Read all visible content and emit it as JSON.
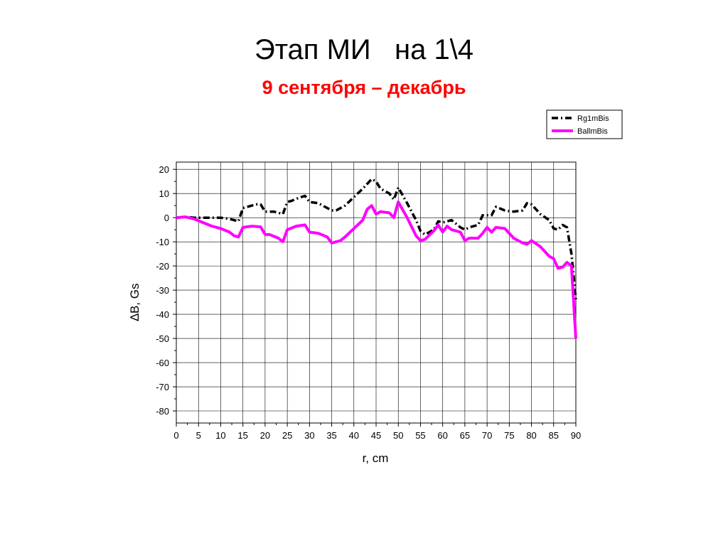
{
  "slide": {
    "title": "Этап МИ   на 1\\4",
    "subtitle": "9 сентября – декабрь"
  },
  "chart_data": {
    "type": "line",
    "xlabel": "r, cm",
    "ylabel": "∆B, Gs",
    "xlim": [
      0,
      90
    ],
    "ylim": [
      -85,
      23
    ],
    "x_ticks": [
      0,
      5,
      10,
      15,
      20,
      25,
      30,
      35,
      40,
      45,
      50,
      55,
      60,
      65,
      70,
      75,
      80,
      85,
      90
    ],
    "y_ticks": [
      20,
      10,
      0,
      -10,
      -20,
      -30,
      -40,
      -50,
      -60,
      -70,
      -80
    ],
    "grid": true,
    "legend_position": "top-right",
    "series": [
      {
        "name": "Rg1mBis",
        "color": "#000000",
        "style": "dash-dot",
        "x": [
          0,
          2,
          4,
          6,
          8,
          10,
          12,
          14,
          15,
          16,
          18,
          19,
          20,
          22,
          24,
          25,
          26,
          28,
          29,
          30,
          32,
          34,
          35,
          36,
          38,
          40,
          42,
          44,
          45,
          46,
          48,
          49,
          50,
          52,
          54,
          55,
          56,
          58,
          59,
          60,
          61,
          62,
          64,
          65,
          66,
          68,
          69,
          70,
          71,
          72,
          74,
          76,
          78,
          79,
          80,
          82,
          84,
          85,
          86,
          87,
          88,
          89,
          90
        ],
        "values": [
          0,
          0.3,
          0,
          0,
          0,
          0,
          -0.5,
          -1.5,
          4,
          4.5,
          5.5,
          5.5,
          2.5,
          2.5,
          1.5,
          6.5,
          7,
          8.5,
          9,
          6.5,
          6,
          4,
          3,
          3,
          5,
          8.5,
          12,
          16,
          15,
          12,
          10,
          7.5,
          12.5,
          6,
          -1,
          -5.5,
          -7,
          -5,
          -1.5,
          -2,
          -1.5,
          -1,
          -4,
          -5,
          -4,
          -3,
          1,
          1,
          1,
          4.5,
          3,
          2.5,
          3,
          6,
          5.5,
          1.5,
          -1,
          -4.5,
          -5,
          -3,
          -4,
          -15,
          -34
        ]
      },
      {
        "name": "BallmBis",
        "color": "#ff00ff",
        "style": "solid",
        "x": [
          0,
          2,
          4,
          6,
          8,
          10,
          12,
          13,
          14,
          15,
          17,
          19,
          20,
          21,
          23,
          24,
          25,
          27,
          29,
          30,
          32,
          34,
          35,
          37,
          38,
          40,
          42,
          43,
          44,
          45,
          46,
          48,
          49,
          50,
          52,
          54,
          55,
          56,
          58,
          59,
          60,
          61,
          62,
          64,
          65,
          66,
          68,
          69,
          70,
          71,
          72,
          74,
          76,
          78,
          79,
          80,
          82,
          83,
          84,
          85,
          86,
          87,
          88,
          89,
          90
        ],
        "values": [
          0,
          0.3,
          -0.5,
          -2,
          -3.5,
          -4.5,
          -6,
          -7.5,
          -8,
          -4,
          -3.5,
          -3.8,
          -7,
          -7,
          -8.5,
          -10,
          -5,
          -3.5,
          -3,
          -6,
          -6.5,
          -8,
          -10.5,
          -9.5,
          -8,
          -4.5,
          -1,
          3.5,
          5,
          1.5,
          2.5,
          2,
          0,
          6.5,
          0,
          -7.5,
          -9.5,
          -9,
          -5.5,
          -3,
          -6,
          -3.5,
          -5,
          -6,
          -9.5,
          -8.5,
          -8.5,
          -6.5,
          -4,
          -6,
          -4,
          -4.5,
          -8.5,
          -10.5,
          -11,
          -9.5,
          -12,
          -14,
          -16,
          -17,
          -21,
          -20.5,
          -18.5,
          -20,
          -50
        ]
      }
    ]
  }
}
